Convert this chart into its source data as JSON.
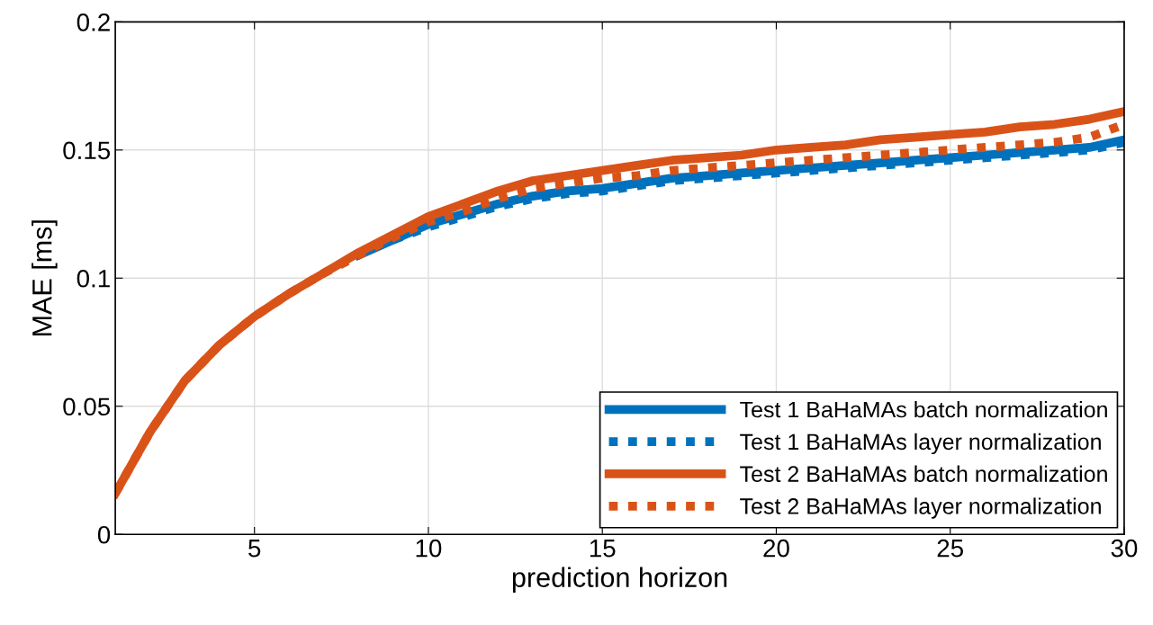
{
  "chart_data": {
    "type": "line",
    "xlabel": "prediction horizon",
    "ylabel": "MAE [ms]",
    "x": [
      1,
      2,
      3,
      4,
      5,
      6,
      7,
      8,
      9,
      10,
      11,
      12,
      13,
      14,
      15,
      16,
      17,
      18,
      19,
      20,
      21,
      22,
      23,
      24,
      25,
      26,
      27,
      28,
      29,
      30
    ],
    "xlim": [
      1,
      30
    ],
    "xticks": [
      5,
      10,
      15,
      20,
      25,
      30
    ],
    "ylim": [
      0,
      0.2
    ],
    "yticks": [
      0,
      0.05,
      0.1,
      0.15,
      0.2
    ],
    "grid": true,
    "legend": "bottom right",
    "marker": "none",
    "series": [
      {
        "name": "Test 1 BaHaMAs batch normalization",
        "color": "#0072bd",
        "line_style": "solid",
        "values": [
          null,
          null,
          null,
          null,
          null,
          null,
          null,
          0.109,
          0.115,
          0.121,
          0.125,
          0.129,
          0.132,
          0.134,
          0.135,
          0.137,
          0.139,
          0.14,
          0.141,
          0.142,
          0.143,
          0.144,
          0.145,
          0.146,
          0.147,
          0.148,
          0.149,
          0.15,
          0.151,
          0.154
        ]
      },
      {
        "name": "Test 1 BaHaMAs layer normalization",
        "color": "#0072bd",
        "line_style": "dotted",
        "values": [
          null,
          null,
          null,
          null,
          null,
          null,
          null,
          null,
          0.115,
          0.12,
          0.124,
          0.128,
          0.131,
          0.133,
          0.134,
          0.136,
          0.138,
          0.139,
          0.14,
          0.141,
          0.142,
          0.143,
          0.144,
          0.145,
          0.146,
          0.147,
          0.148,
          0.149,
          0.15,
          0.153
        ]
      },
      {
        "name": "Test 2 BaHaMAs batch normalization",
        "color": "#d95319",
        "line_style": "solid",
        "values": [
          0.016,
          0.04,
          0.06,
          0.074,
          0.085,
          0.094,
          0.102,
          0.11,
          0.117,
          0.124,
          0.129,
          0.134,
          0.138,
          0.14,
          0.142,
          0.144,
          0.146,
          0.147,
          0.148,
          0.15,
          0.151,
          0.152,
          0.154,
          0.155,
          0.156,
          0.157,
          0.159,
          0.16,
          0.162,
          0.165
        ]
      },
      {
        "name": "Test 2 BaHaMAs layer normalization",
        "color": "#d95319",
        "line_style": "dotted",
        "values": [
          0.016,
          0.04,
          0.06,
          0.074,
          0.085,
          0.094,
          0.102,
          0.109,
          0.116,
          0.122,
          0.126,
          0.131,
          0.135,
          0.137,
          0.139,
          0.14,
          0.142,
          0.143,
          0.144,
          0.145,
          0.146,
          0.147,
          0.148,
          0.149,
          0.15,
          0.151,
          0.152,
          0.153,
          0.155,
          0.16
        ]
      }
    ]
  }
}
